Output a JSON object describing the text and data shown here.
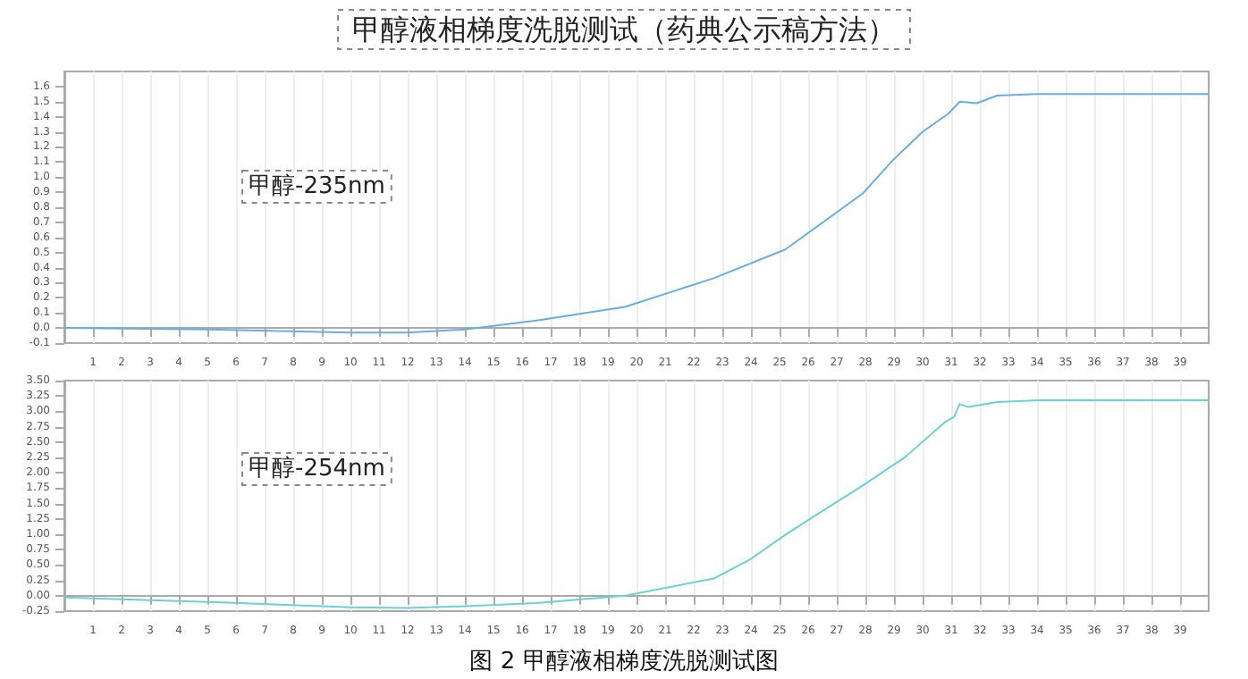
{
  "chart_data": [
    {
      "type": "line",
      "title": "甲醇液相梯度洗脱测试（药典公示稿方法）",
      "annotations": [
        "甲醇-235nm"
      ],
      "x": [
        0,
        5,
        10,
        12,
        14,
        16.5,
        19.6,
        22.7,
        25.2,
        27.9,
        28.95,
        30.0,
        30.9,
        31.3,
        31.9,
        32.6,
        34,
        40
      ],
      "series": [
        {
          "color": "#6aaee0",
          "values": [
            0.0,
            -0.01,
            -0.03,
            -0.03,
            -0.01,
            0.05,
            0.14,
            0.33,
            0.52,
            0.89,
            1.11,
            1.3,
            1.42,
            1.5,
            1.49,
            1.54,
            1.55,
            1.55
          ]
        }
      ],
      "xlim": [
        0,
        40
      ],
      "xticks": [
        1,
        2,
        3,
        4,
        5,
        6,
        7,
        8,
        9,
        10,
        11,
        12,
        13,
        14,
        15,
        16,
        17,
        18,
        19,
        20,
        21,
        22,
        23,
        24,
        25,
        26,
        27,
        28,
        29,
        30,
        31,
        32,
        33,
        34,
        35,
        36,
        37,
        38,
        39
      ],
      "ylim": [
        -0.1,
        1.7
      ],
      "yticks": [
        -0.1,
        {
          "value": 0,
          "label": "0.0"
        },
        0.1,
        0.2,
        0.3,
        0.4,
        0.5,
        0.6,
        0.7,
        0.8,
        0.9,
        {
          "value": 1,
          "label": "1.0"
        },
        1.1,
        1.2,
        1.3,
        1.4,
        1.5,
        1.6
      ],
      "grid": "x"
    },
    {
      "type": "line",
      "annotations": [
        "甲醇-254nm",
        "图 2 甲醇液相梯度洗脱测试图"
      ],
      "x": [
        0,
        5,
        10,
        12,
        14,
        16.5,
        19.6,
        22.7,
        24,
        25.2,
        26.5,
        27.9,
        29.4,
        30.8,
        31.1,
        31.3,
        31.6,
        32.6,
        34.1,
        40
      ],
      "series": [
        {
          "color": "#6cd0d8",
          "values": [
            -0.03,
            -0.1,
            -0.19,
            -0.2,
            -0.17,
            -0.12,
            0.0,
            0.28,
            0.6,
            0.99,
            1.38,
            1.79,
            2.26,
            2.83,
            2.91,
            3.12,
            3.07,
            3.15,
            3.18,
            3.18
          ]
        }
      ],
      "xlim": [
        0,
        40
      ],
      "xticks": [
        1,
        2,
        3,
        4,
        5,
        6,
        7,
        8,
        9,
        10,
        11,
        12,
        13,
        14,
        15,
        16,
        17,
        18,
        19,
        20,
        21,
        22,
        23,
        24,
        25,
        26,
        27,
        28,
        29,
        30,
        31,
        32,
        33,
        34,
        35,
        36,
        37,
        38,
        39
      ],
      "ylim": [
        -0.25,
        3.5
      ],
      "yticks": [
        {
          "value": -0.25,
          "label": "-0.25"
        },
        {
          "value": 0,
          "label": "0.00"
        },
        {
          "value": 0.25,
          "label": "0.25"
        },
        {
          "value": 0.5,
          "label": "0.50"
        },
        {
          "value": 0.75,
          "label": "0.75"
        },
        {
          "value": 1,
          "label": "1.00"
        },
        {
          "value": 1.25,
          "label": "1.25"
        },
        {
          "value": 1.5,
          "label": "1.50"
        },
        {
          "value": 1.75,
          "label": "1.75"
        },
        {
          "value": 2,
          "label": "2.00"
        },
        {
          "value": 2.25,
          "label": "2.25"
        },
        {
          "value": 2.5,
          "label": "2.50"
        },
        {
          "value": 2.75,
          "label": "2.75"
        },
        {
          "value": 3,
          "label": "3.00"
        },
        {
          "value": 3.25,
          "label": "3.25"
        },
        {
          "value": 3.5,
          "label": "3.50"
        }
      ],
      "grid": "x"
    }
  ]
}
